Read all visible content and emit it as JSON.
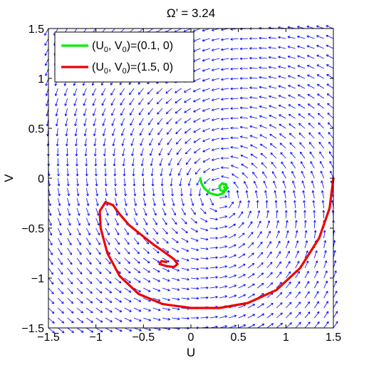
{
  "chart_data": {
    "type": "line",
    "title": "Ω’ = 3.24",
    "xlabel": "U",
    "ylabel": "V",
    "xlim": [
      -1.5,
      1.5
    ],
    "ylim": [
      -1.5,
      1.5
    ],
    "xticks": [
      -1.5,
      -1,
      -0.5,
      0,
      0.5,
      1,
      1.5
    ],
    "yticks": [
      -1.5,
      -1,
      -0.5,
      0,
      0.5,
      1,
      1.5
    ],
    "xtick_labels": [
      "−1.5",
      "−1",
      "−0.5",
      "0",
      "0.5",
      "1",
      "1.5"
    ],
    "ytick_labels": [
      "−1.5",
      "−1",
      "−0.5",
      "0",
      "0.5",
      "1",
      "1.5"
    ],
    "grid": false,
    "legend_position": "top-left",
    "colors": {
      "field": "#0000ff",
      "green": "#00ee00",
      "red": "#ee0000"
    },
    "vector_field": {
      "description_free": true,
      "grid_step": 0.1,
      "center": [
        0.3,
        -0.18
      ],
      "swirl_ccw": true
    },
    "series": [
      {
        "name": "(U0, V0)=(0.1, 0)",
        "legend": {
          "prefix": "(U",
          "sub1": "0",
          "mid": ", V",
          "sub2": "0",
          "suffix": ")=(0.1, 0)"
        },
        "color": "#00ee00",
        "points": [
          [
            0.1,
            0.0
          ],
          [
            0.11,
            -0.05
          ],
          [
            0.14,
            -0.1
          ],
          [
            0.2,
            -0.15
          ],
          [
            0.28,
            -0.17
          ],
          [
            0.34,
            -0.15
          ],
          [
            0.38,
            -0.1
          ],
          [
            0.37,
            -0.06
          ],
          [
            0.33,
            -0.05
          ],
          [
            0.3,
            -0.08
          ],
          [
            0.31,
            -0.12
          ],
          [
            0.34,
            -0.13
          ],
          [
            0.36,
            -0.11
          ],
          [
            0.35,
            -0.09
          ]
        ]
      },
      {
        "name": "(U0, V0)=(1.5, 0)",
        "legend": {
          "prefix": "(U",
          "sub1": "0",
          "mid": ", V",
          "sub2": "0",
          "suffix": ")=(1.5, 0)"
        },
        "color": "#ee0000",
        "points": [
          [
            1.5,
            0.0
          ],
          [
            1.46,
            -0.3
          ],
          [
            1.35,
            -0.6
          ],
          [
            1.15,
            -0.9
          ],
          [
            0.9,
            -1.12
          ],
          [
            0.6,
            -1.25
          ],
          [
            0.3,
            -1.3
          ],
          [
            0.0,
            -1.3
          ],
          [
            -0.3,
            -1.26
          ],
          [
            -0.55,
            -1.16
          ],
          [
            -0.75,
            -0.98
          ],
          [
            -0.88,
            -0.75
          ],
          [
            -0.95,
            -0.5
          ],
          [
            -0.96,
            -0.33
          ],
          [
            -0.9,
            -0.24
          ],
          [
            -0.82,
            -0.27
          ],
          [
            -0.75,
            -0.36
          ],
          [
            -0.65,
            -0.47
          ],
          [
            -0.52,
            -0.57
          ],
          [
            -0.4,
            -0.66
          ],
          [
            -0.28,
            -0.74
          ],
          [
            -0.18,
            -0.81
          ],
          [
            -0.14,
            -0.86
          ],
          [
            -0.18,
            -0.89
          ],
          [
            -0.26,
            -0.88
          ],
          [
            -0.33,
            -0.86
          ],
          [
            -0.31,
            -0.83
          ],
          [
            -0.26,
            -0.84
          ]
        ]
      }
    ]
  }
}
